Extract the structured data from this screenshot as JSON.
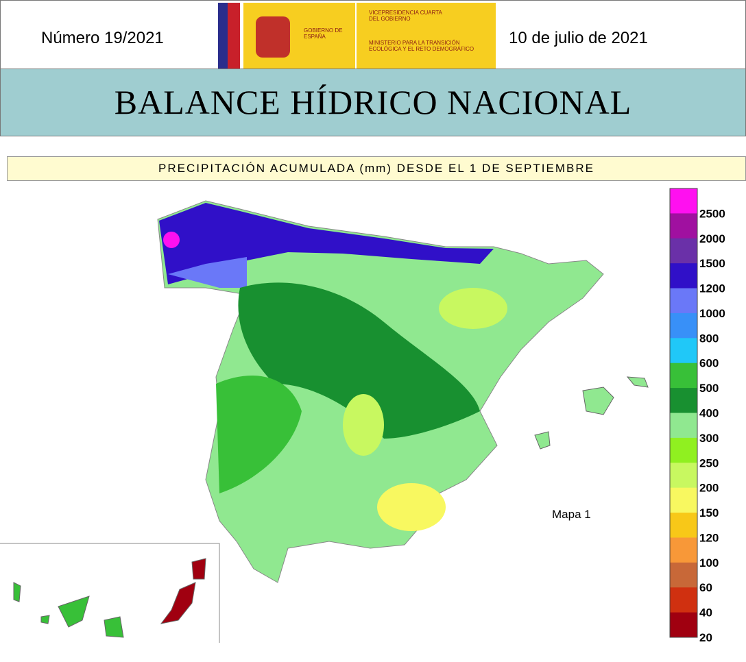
{
  "header": {
    "number": "Número 19/2021",
    "date": "10 de julio de 2021",
    "logo_left": "GOBIERNO DE ESPAÑA",
    "logo_right_top": "VICEPRESIDENCIA CUARTA DEL GOBIERNO",
    "logo_right_bottom": "MINISTERIO PARA LA TRANSICIÓN ECOLÓGICA Y EL RETO DEMOGRÁFICO",
    "title": "BALANCE HÍDRICO NACIONAL"
  },
  "map": {
    "title": "PRECIPITACIÓN ACUMULADA (mm) DESDE EL 1 DE SEPTIEMBRE",
    "label": "Mapa 1",
    "legend": {
      "levels": [
        2500,
        2000,
        1500,
        1200,
        1000,
        800,
        600,
        500,
        400,
        300,
        250,
        200,
        150,
        120,
        100,
        60,
        40,
        20
      ],
      "colors": [
        "#ff10f0",
        "#a010a0",
        "#6a30a8",
        "#3010c8",
        "#6a78f8",
        "#3890f8",
        "#20c8f8",
        "#38c038",
        "#189030",
        "#90e890",
        "#90f020",
        "#c8f860",
        "#f8f860",
        "#f8c818",
        "#f89838",
        "#c86838",
        "#d03010",
        "#a00010"
      ]
    }
  }
}
